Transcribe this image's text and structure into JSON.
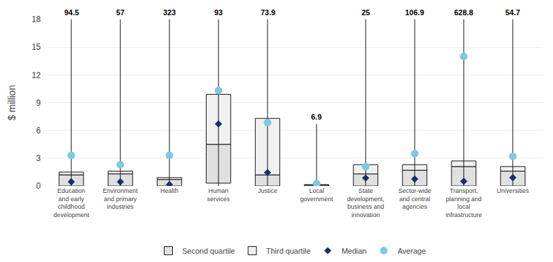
{
  "chart_data": {
    "type": "box",
    "categories": [
      "Education\nand early\nchildhood\ndevelopment",
      "Environment\nand primary\nindustries",
      "Health",
      "Human\nservices",
      "Justice",
      "Local\ngovernment",
      "State\ndevelopment,\nbusiness and\ninnovation",
      "Sector-wide\nand central\nagencies",
      "Transport,\nplanning and\nlocal\ninfrastructure",
      "Universities"
    ],
    "ylabel": "$ million",
    "ylim": [
      0,
      18
    ],
    "yticks": [
      0,
      3,
      6,
      9,
      12,
      15,
      18
    ],
    "grid": true,
    "whiskers": {
      "color": "#111111",
      "low": [
        0.0,
        0.0,
        0.0,
        0.0,
        0.0,
        0.0,
        0.0,
        0.0,
        0.0,
        0.0
      ],
      "high": [
        18.0,
        18.0,
        18.0,
        18.0,
        18.0,
        6.7,
        18.0,
        18.0,
        18.0,
        18.0
      ]
    },
    "series": [
      {
        "name": "Second quartile",
        "type": "bar",
        "color": "#e0e0e0",
        "base": [
          0.0,
          0.0,
          0.0,
          0.3,
          0.0,
          0.0,
          0.0,
          0.0,
          0.0,
          0.0
        ],
        "values": [
          1.2,
          1.3,
          0.7,
          4.5,
          1.2,
          0.1,
          1.3,
          1.7,
          2.1,
          1.6
        ]
      },
      {
        "name": "Third quartile",
        "type": "bar",
        "color": "#f0f0f0",
        "base": [
          1.2,
          1.3,
          0.7,
          4.5,
          1.2,
          0.1,
          1.3,
          1.7,
          2.1,
          1.6
        ],
        "values": [
          1.5,
          1.6,
          0.9,
          9.9,
          7.3,
          0.14,
          2.3,
          2.3,
          2.7,
          2.1
        ]
      },
      {
        "name": "Median",
        "type": "scatter",
        "marker": "diamond",
        "color": "#1c2d6b",
        "values": [
          0.45,
          0.45,
          0.15,
          6.7,
          1.45,
          0.06,
          0.85,
          0.75,
          0.5,
          0.9
        ]
      },
      {
        "name": "Average",
        "type": "scatter",
        "marker": "circle",
        "color": "#7ec8e3",
        "values": [
          3.3,
          2.3,
          3.3,
          10.3,
          6.85,
          0.25,
          2.1,
          3.5,
          14.0,
          3.2
        ]
      }
    ],
    "annotations": [
      {
        "category": "Education\nand early\nchildhood\ndevelopment",
        "text": "94.5"
      },
      {
        "category": "Environment\nand primary\nindustries",
        "text": "57"
      },
      {
        "category": "Health",
        "text": "323"
      },
      {
        "category": "Human\nservices",
        "text": "93"
      },
      {
        "category": "Justice",
        "text": "73.9"
      },
      {
        "category": "Local\ngovernment",
        "text": "6.9"
      },
      {
        "category": "State\ndevelopment,\nbusiness and\ninnovation",
        "text": "25"
      },
      {
        "category": "Sector-wide\nand central\nagencies",
        "text": "106.9"
      },
      {
        "category": "Transport,\nplanning and\nlocal\ninfrastructure",
        "text": "628.8"
      },
      {
        "category": "Universities",
        "text": "54.7"
      }
    ]
  }
}
